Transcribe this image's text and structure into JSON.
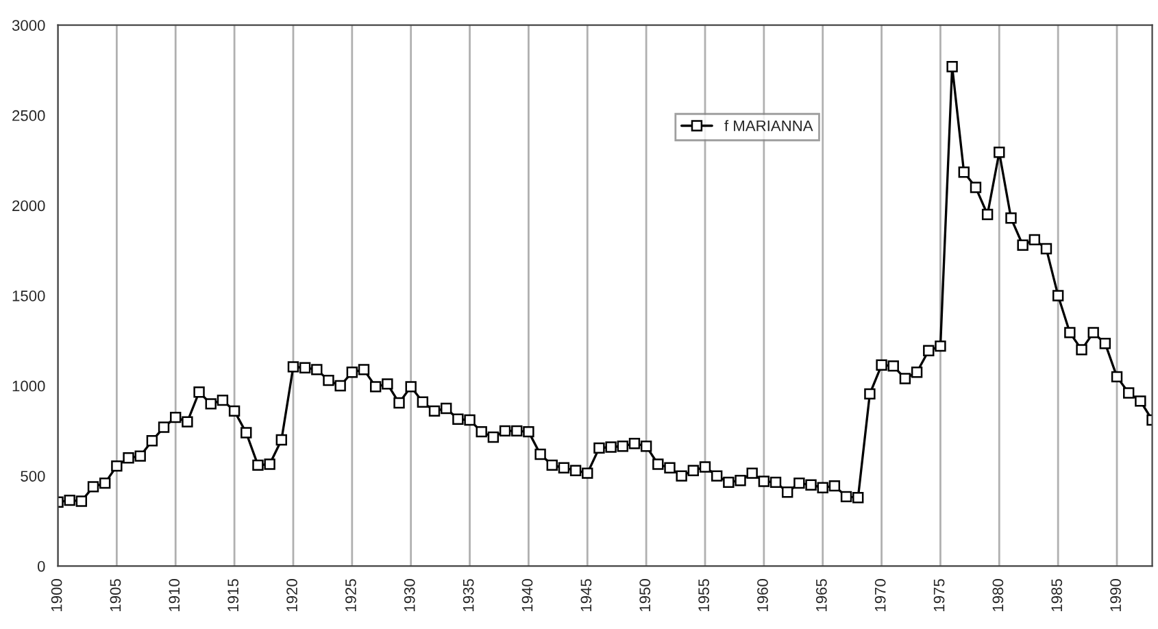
{
  "chart_data": {
    "type": "line",
    "x": [
      1900,
      1901,
      1902,
      1903,
      1904,
      1905,
      1906,
      1907,
      1908,
      1909,
      1910,
      1911,
      1912,
      1913,
      1914,
      1915,
      1916,
      1917,
      1918,
      1919,
      1920,
      1921,
      1922,
      1923,
      1924,
      1925,
      1926,
      1927,
      1928,
      1929,
      1930,
      1931,
      1932,
      1933,
      1934,
      1935,
      1936,
      1937,
      1938,
      1939,
      1940,
      1941,
      1942,
      1943,
      1944,
      1945,
      1946,
      1947,
      1948,
      1949,
      1950,
      1951,
      1952,
      1953,
      1954,
      1955,
      1956,
      1957,
      1958,
      1959,
      1960,
      1961,
      1962,
      1963,
      1964,
      1965,
      1966,
      1967,
      1968,
      1969,
      1970,
      1971,
      1972,
      1973,
      1974,
      1975,
      1976,
      1977,
      1978,
      1979,
      1980,
      1981,
      1982,
      1983,
      1984,
      1985,
      1986,
      1987,
      1988,
      1989,
      1990,
      1991,
      1992,
      1993
    ],
    "series": [
      {
        "name": "f MARIANNA",
        "color": "#000000",
        "values": [
          355,
          365,
          360,
          440,
          460,
          555,
          600,
          610,
          695,
          770,
          825,
          800,
          965,
          900,
          920,
          860,
          740,
          560,
          565,
          700,
          1105,
          1100,
          1090,
          1030,
          1000,
          1075,
          1090,
          995,
          1010,
          905,
          995,
          910,
          860,
          875,
          815,
          810,
          745,
          715,
          750,
          750,
          745,
          620,
          560,
          545,
          530,
          515,
          655,
          660,
          665,
          680,
          665,
          565,
          545,
          500,
          530,
          550,
          500,
          465,
          475,
          515,
          470,
          465,
          410,
          460,
          450,
          435,
          445,
          385,
          380,
          955,
          1115,
          1110,
          1040,
          1075,
          1195,
          1220,
          2770,
          2185,
          2100,
          1950,
          2295,
          1930,
          1780,
          1810,
          1760,
          1500,
          1295,
          1200,
          1295,
          1235,
          1050,
          960,
          915,
          810
        ]
      }
    ],
    "xlim": [
      1900,
      1993
    ],
    "xticks": [
      1900,
      1905,
      1910,
      1915,
      1920,
      1925,
      1930,
      1935,
      1940,
      1945,
      1950,
      1955,
      1960,
      1965,
      1970,
      1975,
      1980,
      1985,
      1990
    ],
    "ylim": [
      0,
      3000
    ],
    "yticks": [
      0,
      500,
      1000,
      1500,
      2000,
      2500,
      3000
    ],
    "grid": "x",
    "legend": "top",
    "marker": "square",
    "line_style": "solid"
  }
}
